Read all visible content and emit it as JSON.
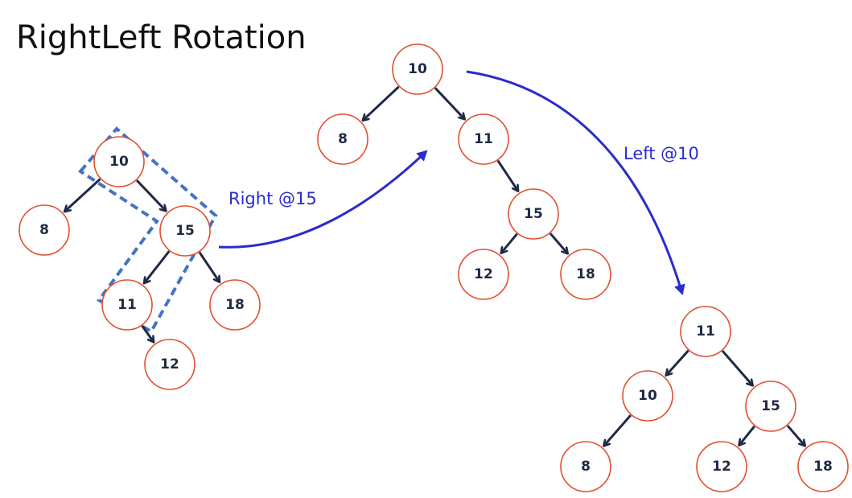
{
  "title": "RightLeft Rotation",
  "colors": {
    "node_stroke": "#e05030",
    "node_text": "#1f2a44",
    "edge": "#1f2a44",
    "rotation_arrow": "#2b2bcc",
    "rotation_label": "#2b2bcc",
    "highlight": "#4472c4"
  },
  "trees": [
    {
      "name": "original",
      "nodes": [
        {
          "id": "a10",
          "label": "10"
        },
        {
          "id": "a8",
          "label": "8"
        },
        {
          "id": "a15",
          "label": "15"
        },
        {
          "id": "a11",
          "label": "11"
        },
        {
          "id": "a18",
          "label": "18"
        },
        {
          "id": "a12",
          "label": "12"
        }
      ],
      "edges": [
        [
          "a10",
          "a8"
        ],
        [
          "a10",
          "a15"
        ],
        [
          "a15",
          "a11"
        ],
        [
          "a15",
          "a18"
        ],
        [
          "a11",
          "a12"
        ]
      ]
    },
    {
      "name": "after-right-rotation",
      "nodes": [
        {
          "id": "b10",
          "label": "10"
        },
        {
          "id": "b8",
          "label": "8"
        },
        {
          "id": "b11",
          "label": "11"
        },
        {
          "id": "b15",
          "label": "15"
        },
        {
          "id": "b12",
          "label": "12"
        },
        {
          "id": "b18",
          "label": "18"
        }
      ],
      "edges": [
        [
          "b10",
          "b8"
        ],
        [
          "b10",
          "b11"
        ],
        [
          "b11",
          "b15"
        ],
        [
          "b15",
          "b12"
        ],
        [
          "b15",
          "b18"
        ]
      ]
    },
    {
      "name": "after-left-rotation",
      "nodes": [
        {
          "id": "c11",
          "label": "11"
        },
        {
          "id": "c10",
          "label": "10"
        },
        {
          "id": "c15",
          "label": "15"
        },
        {
          "id": "c8",
          "label": "8"
        },
        {
          "id": "c12",
          "label": "12"
        },
        {
          "id": "c18",
          "label": "18"
        }
      ],
      "edges": [
        [
          "c11",
          "c10"
        ],
        [
          "c11",
          "c15"
        ],
        [
          "c10",
          "c8"
        ],
        [
          "c15",
          "c12"
        ],
        [
          "c15",
          "c18"
        ]
      ]
    }
  ],
  "rotations": [
    {
      "id": "right",
      "label": "Right @15"
    },
    {
      "id": "left",
      "label": "Left @10"
    }
  ]
}
